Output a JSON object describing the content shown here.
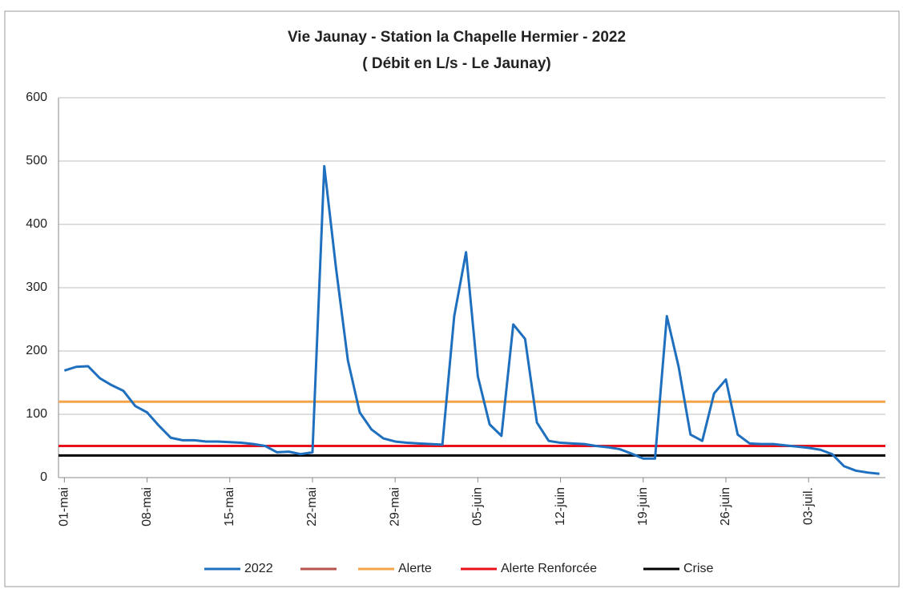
{
  "chart_data": {
    "type": "line",
    "title": "Vie Jaunay - Station la Chapelle Hermier - 2022",
    "subtitle": "( Débit en L/s - Le Jaunay)",
    "categories": [
      "01-mai",
      null,
      null,
      null,
      null,
      null,
      null,
      "08-mai",
      null,
      null,
      null,
      null,
      null,
      null,
      "15-mai",
      null,
      null,
      null,
      null,
      null,
      null,
      "22-mai",
      null,
      null,
      null,
      null,
      null,
      null,
      "29-mai",
      null,
      null,
      null,
      null,
      null,
      null,
      "05-juin",
      null,
      null,
      null,
      null,
      null,
      null,
      "12-juin",
      null,
      null,
      null,
      null,
      null,
      null,
      "19-juin",
      null,
      null,
      null,
      null,
      null,
      null,
      "26-juin",
      null,
      null,
      null,
      null,
      null,
      null,
      "03-juil.",
      null,
      null,
      null,
      null,
      null,
      null
    ],
    "series": [
      {
        "name": "2022",
        "color": "#1f6fbf",
        "values": [
          169,
          175,
          176,
          157,
          146,
          137,
          113,
          103,
          82,
          63,
          59,
          59,
          57,
          57,
          56,
          55,
          53,
          50,
          40,
          41,
          37,
          40,
          492,
          330,
          185,
          103,
          76,
          62,
          57,
          55,
          54,
          53,
          52,
          255,
          356,
          160,
          84,
          66,
          242,
          219,
          87,
          58,
          55,
          54,
          53,
          50,
          48,
          45,
          38,
          30,
          30,
          255,
          175,
          68,
          58,
          133,
          155,
          68,
          54,
          53,
          53,
          51,
          49,
          47,
          44,
          37,
          18,
          11,
          8,
          6
        ]
      },
      {
        "color": "#b5524b",
        "values": [
          null,
          null,
          null,
          null,
          null,
          null,
          null,
          null,
          null,
          null,
          null,
          null,
          null,
          null,
          null,
          null,
          null,
          null,
          null,
          null,
          null,
          null,
          null,
          null,
          null,
          null,
          null,
          null,
          null,
          null,
          null,
          null,
          null,
          null,
          null,
          null,
          null,
          null,
          null,
          null,
          null,
          null,
          null,
          null,
          null,
          null,
          null,
          null,
          null,
          null,
          null,
          null,
          null,
          null,
          null,
          null,
          null,
          null,
          null,
          null,
          null,
          null,
          null,
          null,
          null,
          null,
          null,
          null,
          null,
          null
        ]
      }
    ],
    "thresholds": [
      {
        "name": "Alerte",
        "color": "#f5a44a",
        "value": 120
      },
      {
        "name": "Alerte Renforcée",
        "color": "#e8101a",
        "value": 50
      },
      {
        "name": "Crise",
        "color": "#000000",
        "value": 35
      }
    ],
    "ylim": [
      0,
      600
    ],
    "yticks": [
      0,
      100,
      200,
      300,
      400,
      500,
      600
    ],
    "grid": true,
    "legend": "bottom"
  }
}
